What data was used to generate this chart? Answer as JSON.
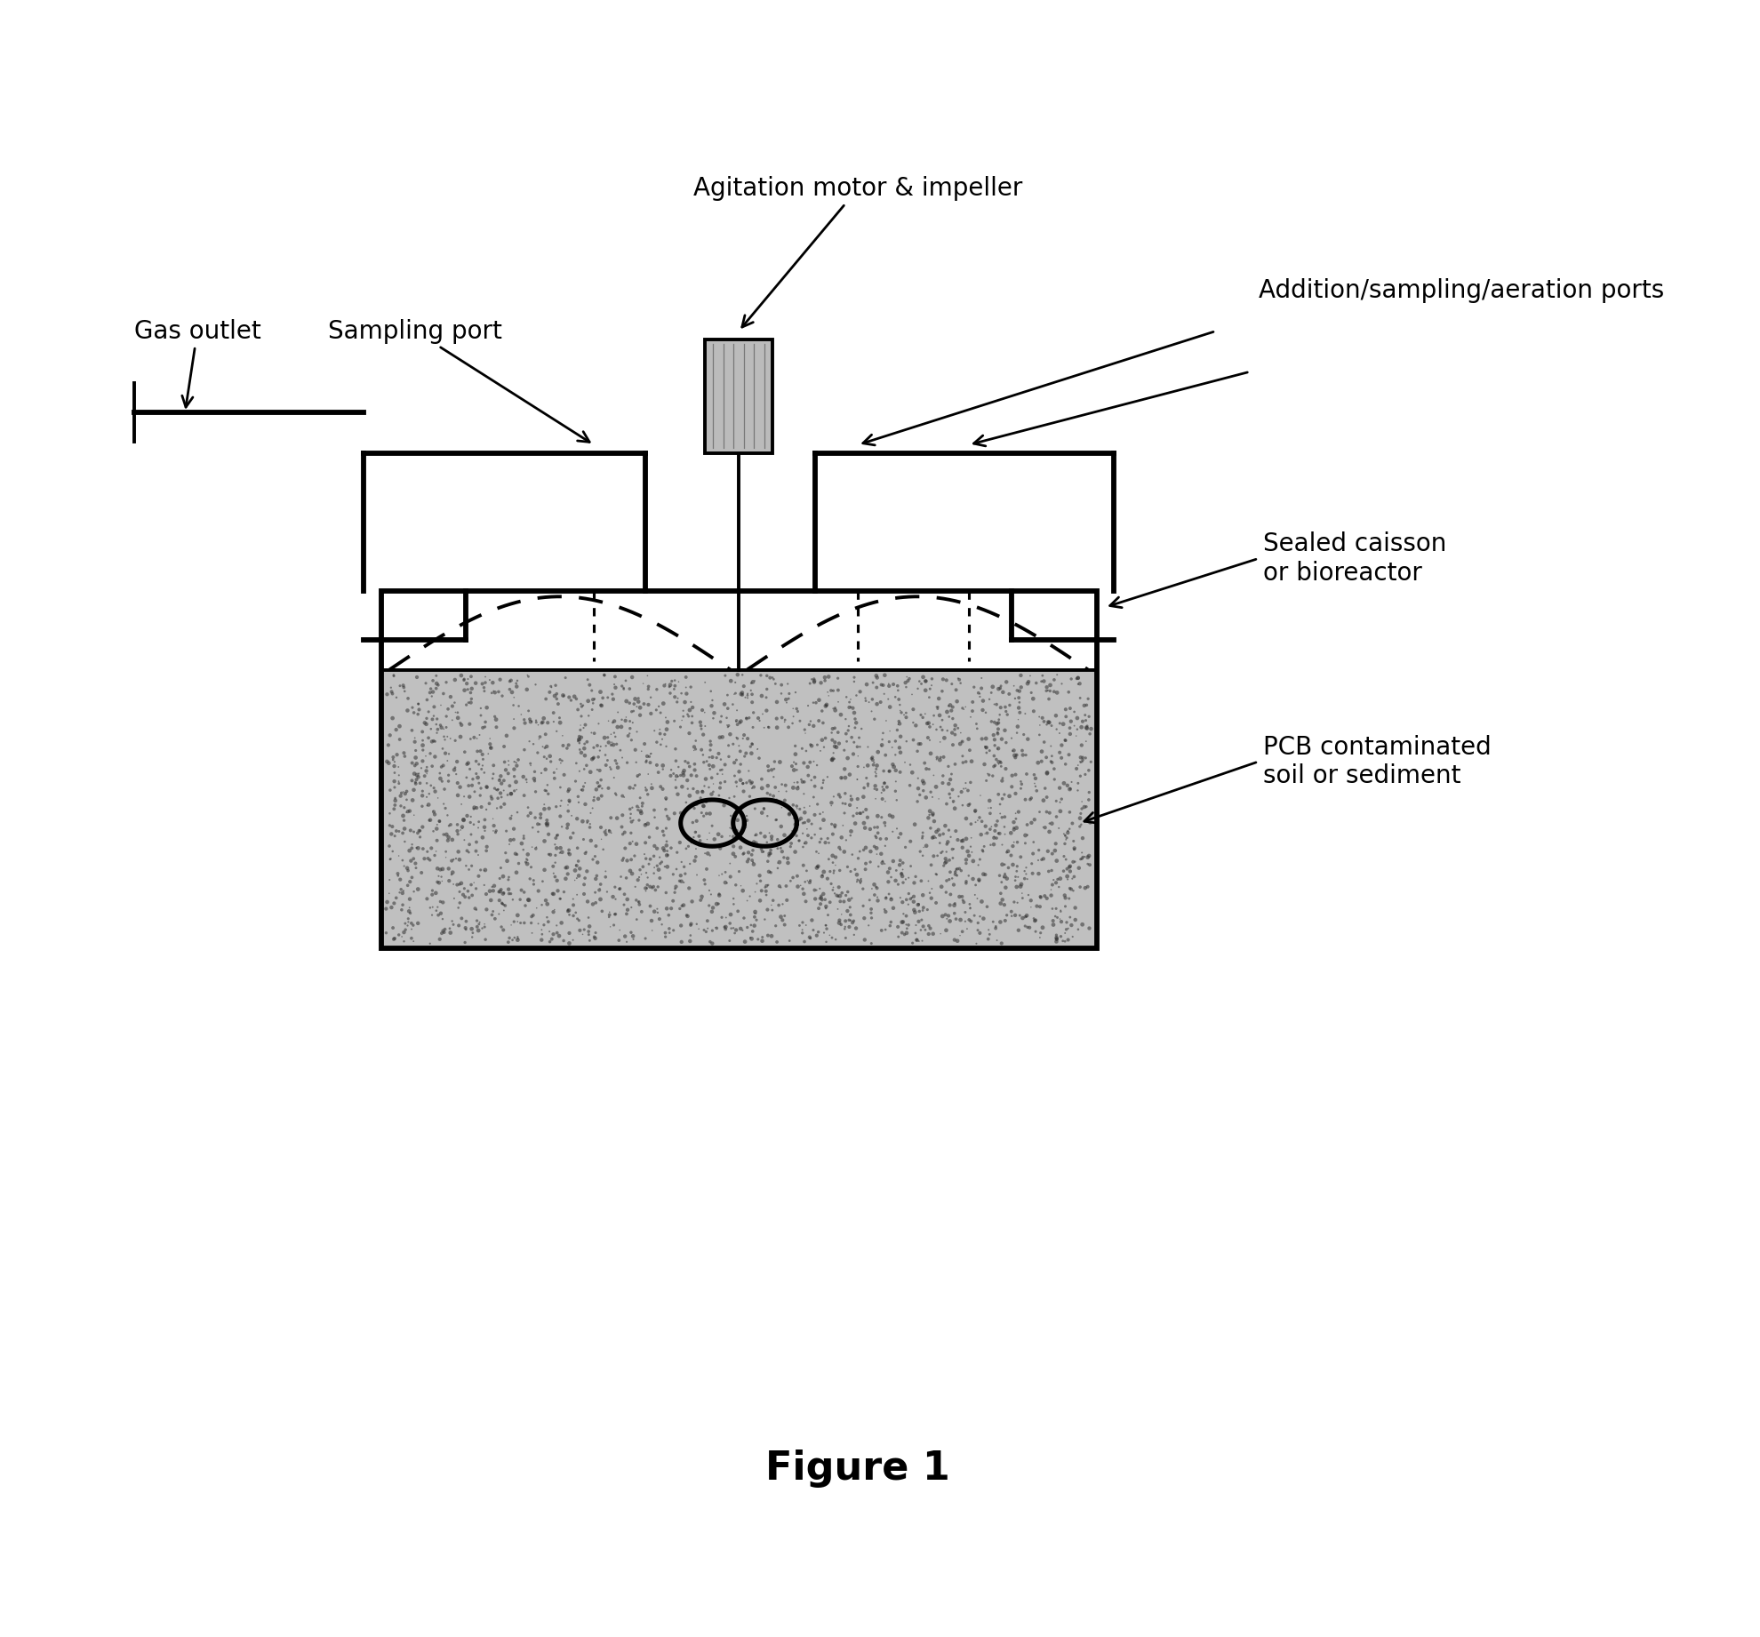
{
  "bg_color": "#ffffff",
  "fig_width": 19.8,
  "fig_height": 18.42,
  "title": "Figure 1",
  "title_fontsize": 32,
  "title_bold": true,
  "labels": {
    "agitation_motor": "Agitation motor & impeller",
    "gas_outlet": "Gas outlet",
    "sampling_port": "Sampling port",
    "addition_ports": "Addition/sampling/aeration ports",
    "sealed_caisson": "Sealed caisson\nor bioreactor",
    "pcb_contaminated": "PCB contaminated\nsoil or sediment"
  },
  "label_fontsize": 20,
  "black": "#000000"
}
